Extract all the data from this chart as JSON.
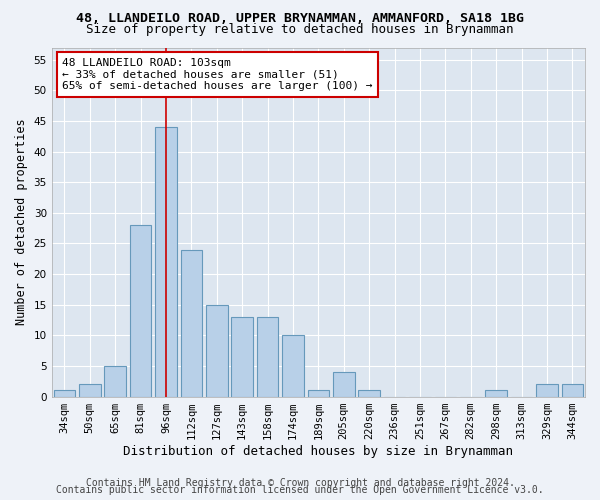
{
  "title1": "48, LLANDEILO ROAD, UPPER BRYNAMMAN, AMMANFORD, SA18 1BG",
  "title2": "Size of property relative to detached houses in Brynamman",
  "xlabel": "Distribution of detached houses by size in Brynamman",
  "ylabel": "Number of detached properties",
  "categories": [
    "34sqm",
    "50sqm",
    "65sqm",
    "81sqm",
    "96sqm",
    "112sqm",
    "127sqm",
    "143sqm",
    "158sqm",
    "174sqm",
    "189sqm",
    "205sqm",
    "220sqm",
    "236sqm",
    "251sqm",
    "267sqm",
    "282sqm",
    "298sqm",
    "313sqm",
    "329sqm",
    "344sqm"
  ],
  "values": [
    1,
    2,
    5,
    28,
    44,
    24,
    15,
    13,
    13,
    10,
    1,
    4,
    1,
    0,
    0,
    0,
    0,
    1,
    0,
    2,
    2
  ],
  "bar_color": "#b8d0e8",
  "bar_edgecolor": "#6699bb",
  "bar_linewidth": 0.8,
  "vline_x_idx": 4,
  "vline_color": "#cc0000",
  "ylim": [
    0,
    57
  ],
  "yticks": [
    0,
    5,
    10,
    15,
    20,
    25,
    30,
    35,
    40,
    45,
    50,
    55
  ],
  "annotation_line1": "48 LLANDEILO ROAD: 103sqm",
  "annotation_line2": "← 33% of detached houses are smaller (51)",
  "annotation_line3": "65% of semi-detached houses are larger (100) →",
  "footer1": "Contains HM Land Registry data © Crown copyright and database right 2024.",
  "footer2": "Contains public sector information licensed under the Open Government Licence v3.0.",
  "bg_color": "#eef2f8",
  "plot_bg_color": "#dde6f0",
  "grid_color": "#ffffff",
  "title1_fontsize": 9.5,
  "title2_fontsize": 9,
  "xlabel_fontsize": 9,
  "ylabel_fontsize": 8.5,
  "tick_fontsize": 7.5,
  "annotation_fontsize": 8,
  "footer_fontsize": 7
}
